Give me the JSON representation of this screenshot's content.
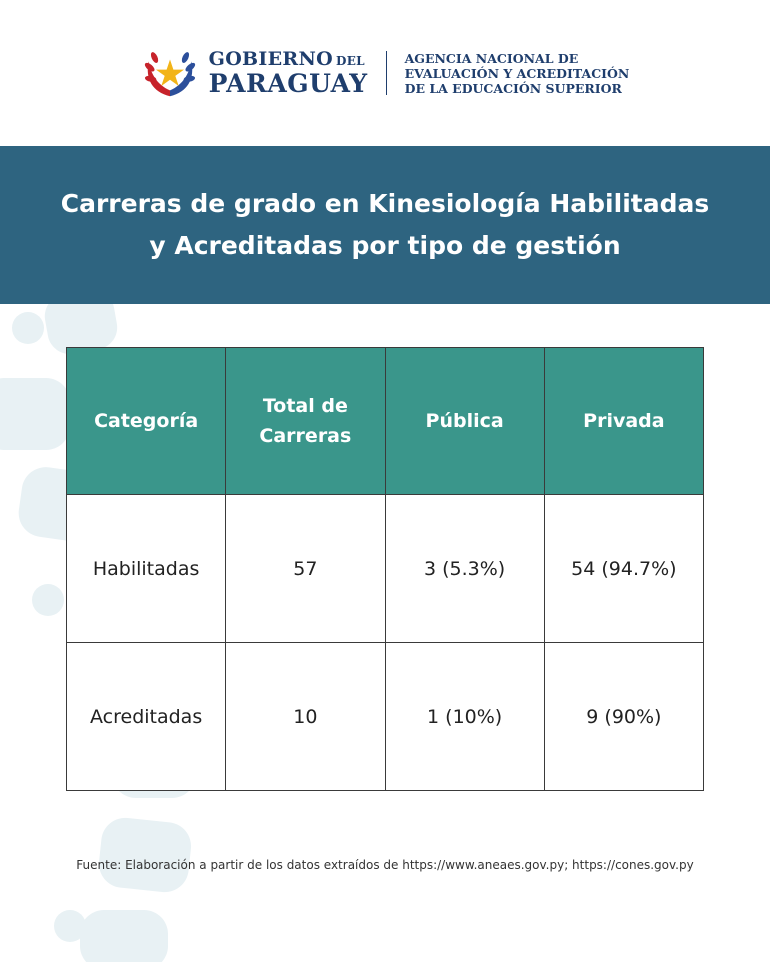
{
  "header": {
    "gov_line1": "GOBIERNO",
    "gov_del": "DEL",
    "gov_line2": "PARAGUAY",
    "agency_lines": [
      "AGENCIA NACIONAL DE",
      "EVALUACIÓN Y ACREDITACIÓN",
      "DE LA EDUCACIÓN SUPERIOR"
    ],
    "emblem_icon": "paraguay-seal-icon"
  },
  "banner": {
    "title_line1": "Carreras de grado en Kinesiología Habilitadas",
    "title_line2": "y Acreditadas por tipo de gestión"
  },
  "table": {
    "headers": [
      "Categoría",
      "Total de Carreras",
      "Pública",
      "Privada"
    ],
    "rows": [
      [
        "Habilitadas",
        "57",
        "3 (5.3%)",
        "54 (94.7%)"
      ],
      [
        "Acreditadas",
        "10",
        "1 (10%)",
        "9 (90%)"
      ]
    ]
  },
  "source": "Fuente: Elaboración a partir de los datos extraídos de  https://www.aneaes.gov.py; https://cones.gov.py",
  "colors": {
    "banner": "#2e6480",
    "table_header": "#3a968b",
    "brand_text": "#1f3e6d"
  }
}
